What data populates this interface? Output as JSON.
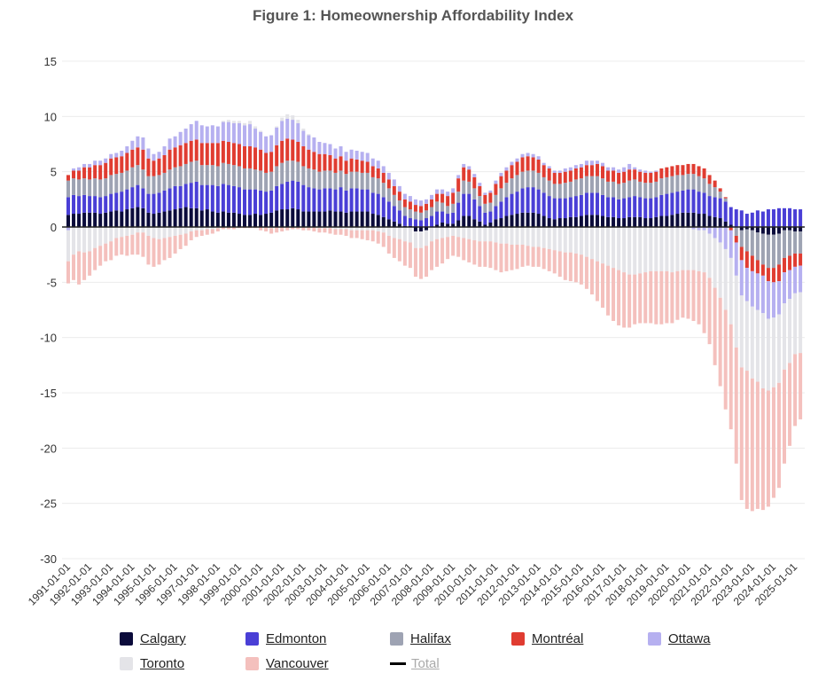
{
  "chart_data": {
    "type": "bar",
    "barmode": "relative",
    "title": "Figure 1: Homeownership Affordability Index",
    "xlabel": "",
    "ylabel": "",
    "ylim": [
      -30,
      15
    ],
    "yticks": [
      15,
      10,
      5,
      0,
      -5,
      -10,
      -15,
      -20,
      -25,
      -30
    ],
    "start": "1991Q1",
    "frequency": "quarterly",
    "xtick_labels": [
      "1991-01-01",
      "1992-01-01",
      "1993-01-01",
      "1994-01-01",
      "1995-01-01",
      "1996-01-01",
      "1997-01-01",
      "1998-01-01",
      "1999-01-01",
      "2000-01-01",
      "2001-01-01",
      "2002-01-01",
      "2003-01-01",
      "2004-01-01",
      "2005-01-01",
      "2006-01-01",
      "2007-01-01",
      "2008-01-01",
      "2009-01-01",
      "2010-01-01",
      "2011-01-01",
      "2012-01-01",
      "2013-01-01",
      "2014-01-01",
      "2015-01-01",
      "2016-01-01",
      "2017-01-01",
      "2018-01-01",
      "2019-01-01",
      "2020-01-01",
      "2021-01-01",
      "2022-01-01",
      "2023-01-01",
      "2024-01-01",
      "2025-01-01"
    ],
    "grid": true,
    "legend_placement": "bottom",
    "series": [
      {
        "name": "Calgary",
        "color": "#0b0b3b",
        "values": [
          1.1,
          1.2,
          1.2,
          1.3,
          1.3,
          1.3,
          1.2,
          1.3,
          1.4,
          1.5,
          1.4,
          1.6,
          1.7,
          1.8,
          1.7,
          1.3,
          1.2,
          1.3,
          1.4,
          1.5,
          1.6,
          1.7,
          1.8,
          1.7,
          1.7,
          1.5,
          1.6,
          1.4,
          1.3,
          1.4,
          1.3,
          1.3,
          1.2,
          1.1,
          1.1,
          1.2,
          1.1,
          1.2,
          1.3,
          1.5,
          1.6,
          1.6,
          1.7,
          1.6,
          1.4,
          1.4,
          1.4,
          1.4,
          1.4,
          1.5,
          1.4,
          1.4,
          1.3,
          1.4,
          1.4,
          1.4,
          1.4,
          1.2,
          1.1,
          0.9,
          0.7,
          0.5,
          0.3,
          0.1,
          0.1,
          -0.4,
          -0.4,
          -0.3,
          0.0,
          0.2,
          0.4,
          0.3,
          0.3,
          0.6,
          1.0,
          1.0,
          0.7,
          0.5,
          0.2,
          0.4,
          0.7,
          0.8,
          1.0,
          1.1,
          1.2,
          1.3,
          1.3,
          1.3,
          1.2,
          1.0,
          0.8,
          0.7,
          0.8,
          0.8,
          0.9,
          0.9,
          1.0,
          1.1,
          1.1,
          1.1,
          1.0,
          0.9,
          0.9,
          0.8,
          0.8,
          0.9,
          0.9,
          0.9,
          0.8,
          0.8,
          0.9,
          1.0,
          1.0,
          1.1,
          1.2,
          1.3,
          1.3,
          1.3,
          1.2,
          1.2,
          1.0,
          0.9,
          0.8,
          0.5,
          0.2,
          0.0,
          -0.3,
          -0.2,
          -0.3,
          -0.5,
          -0.6,
          -0.7,
          -0.7,
          -0.6,
          -0.3,
          -0.3,
          -0.4,
          -0.4
        ]
      },
      {
        "name": "Edmonton",
        "color": "#4a3fd6",
        "values": [
          1.6,
          1.7,
          1.6,
          1.6,
          1.5,
          1.5,
          1.5,
          1.5,
          1.6,
          1.6,
          1.8,
          1.8,
          1.9,
          2.0,
          1.8,
          1.7,
          1.8,
          1.8,
          1.9,
          2.0,
          2.1,
          2.0,
          2.1,
          2.3,
          2.4,
          2.3,
          2.2,
          2.4,
          2.4,
          2.5,
          2.5,
          2.4,
          2.4,
          2.3,
          2.3,
          2.2,
          2.2,
          2.0,
          2.0,
          2.2,
          2.3,
          2.5,
          2.5,
          2.5,
          2.4,
          2.2,
          2.1,
          2.0,
          2.1,
          2.0,
          2.0,
          2.2,
          2.0,
          2.1,
          2.1,
          2.0,
          2.0,
          1.9,
          1.9,
          1.8,
          1.6,
          1.4,
          1.2,
          0.9,
          0.7,
          0.7,
          0.6,
          0.8,
          1.0,
          1.2,
          1.0,
          0.9,
          1.0,
          1.6,
          2.0,
          2.0,
          1.8,
          1.4,
          1.1,
          1.0,
          1.2,
          1.5,
          1.7,
          1.9,
          2.0,
          2.2,
          2.3,
          2.3,
          2.2,
          2.1,
          2.0,
          1.9,
          1.8,
          1.8,
          1.8,
          1.9,
          1.9,
          2.0,
          2.0,
          2.0,
          1.9,
          1.8,
          1.8,
          1.7,
          1.8,
          1.8,
          1.9,
          1.8,
          1.8,
          1.8,
          1.8,
          1.9,
          2.0,
          2.0,
          2.0,
          2.0,
          2.1,
          2.1,
          2.0,
          1.9,
          1.8,
          1.8,
          1.8,
          1.8,
          1.6,
          1.6,
          1.5,
          1.2,
          1.3,
          1.5,
          1.4,
          1.6,
          1.6,
          1.7,
          1.7,
          1.7,
          1.6,
          1.6
        ]
      },
      {
        "name": "Halifax",
        "color": "#9ea3b3",
        "values": [
          1.5,
          1.5,
          1.5,
          1.5,
          1.5,
          1.6,
          1.6,
          1.6,
          1.7,
          1.7,
          1.7,
          1.7,
          1.8,
          1.8,
          1.7,
          1.6,
          1.6,
          1.6,
          1.6,
          1.7,
          1.7,
          1.8,
          1.8,
          1.9,
          1.9,
          1.8,
          1.8,
          1.8,
          1.8,
          1.9,
          1.9,
          1.9,
          1.9,
          1.9,
          1.9,
          1.8,
          1.8,
          1.7,
          1.7,
          1.8,
          1.9,
          1.9,
          1.8,
          1.8,
          1.7,
          1.7,
          1.7,
          1.6,
          1.6,
          1.6,
          1.5,
          1.5,
          1.5,
          1.5,
          1.5,
          1.5,
          1.5,
          1.4,
          1.4,
          1.3,
          1.2,
          1.0,
          0.9,
          0.8,
          0.8,
          0.7,
          0.7,
          0.7,
          0.8,
          0.9,
          0.8,
          0.7,
          0.8,
          1.0,
          1.2,
          1.1,
          1.0,
          0.9,
          0.8,
          0.8,
          1.0,
          1.2,
          1.3,
          1.4,
          1.5,
          1.5,
          1.5,
          1.5,
          1.5,
          1.4,
          1.4,
          1.3,
          1.3,
          1.4,
          1.4,
          1.5,
          1.5,
          1.5,
          1.5,
          1.5,
          1.5,
          1.4,
          1.4,
          1.4,
          1.4,
          1.5,
          1.5,
          1.4,
          1.4,
          1.4,
          1.4,
          1.5,
          1.5,
          1.5,
          1.5,
          1.4,
          1.4,
          1.4,
          1.4,
          1.3,
          1.1,
          0.9,
          0.6,
          0.3,
          0.0,
          -0.8,
          -1.5,
          -2.0,
          -2.3,
          -2.5,
          -2.8,
          -3.0,
          -3.0,
          -2.8,
          -2.5,
          -2.3,
          -2.0,
          -2.0
        ]
      },
      {
        "name": "Montréal",
        "color": "#e03c31",
        "values": [
          0.5,
          0.7,
          0.8,
          1.0,
          1.1,
          1.2,
          1.3,
          1.4,
          1.5,
          1.5,
          1.5,
          1.6,
          1.6,
          1.6,
          1.8,
          1.6,
          1.4,
          1.5,
          1.6,
          1.8,
          1.8,
          1.9,
          1.9,
          1.9,
          1.9,
          2.0,
          2.0,
          2.0,
          2.1,
          2.0,
          2.0,
          2.0,
          2.0,
          2.0,
          2.0,
          2.0,
          1.9,
          1.8,
          1.8,
          1.9,
          2.0,
          2.0,
          1.9,
          1.8,
          1.8,
          1.7,
          1.6,
          1.6,
          1.5,
          1.4,
          1.3,
          1.3,
          1.2,
          1.2,
          1.1,
          1.1,
          1.0,
          1.0,
          0.9,
          0.9,
          0.8,
          0.8,
          0.8,
          0.7,
          0.7,
          0.6,
          0.6,
          0.6,
          0.7,
          0.7,
          0.8,
          0.9,
          1.0,
          1.2,
          1.2,
          1.1,
          1.0,
          0.9,
          0.8,
          0.9,
          1.0,
          1.1,
          1.1,
          1.2,
          1.2,
          1.3,
          1.3,
          1.2,
          1.2,
          1.1,
          1.1,
          1.0,
          1.0,
          1.0,
          1.0,
          1.0,
          1.0,
          1.0,
          1.0,
          1.1,
          1.1,
          1.0,
          1.0,
          1.0,
          1.0,
          1.0,
          0.9,
          0.9,
          0.9,
          0.9,
          0.9,
          0.9,
          0.9,
          0.9,
          0.9,
          0.9,
          0.9,
          0.9,
          0.9,
          0.9,
          0.8,
          0.6,
          0.3,
          0.1,
          -0.3,
          -0.6,
          -1.2,
          -1.5,
          -1.4,
          -1.2,
          -1.0,
          -1.2,
          -1.3,
          -1.5,
          -1.3,
          -1.3,
          -1.2,
          -1.1
        ]
      },
      {
        "name": "Ottawa",
        "color": "#b6b0f0",
        "values": [
          -0.3,
          0.2,
          0.3,
          0.3,
          0.3,
          0.4,
          0.4,
          0.4,
          0.4,
          0.4,
          0.5,
          0.6,
          0.8,
          1.0,
          1.1,
          0.9,
          0.6,
          0.6,
          0.8,
          1.0,
          1.0,
          1.2,
          1.3,
          1.5,
          1.7,
          1.6,
          1.5,
          1.6,
          1.5,
          1.7,
          1.8,
          1.8,
          1.9,
          1.9,
          2.0,
          1.7,
          1.6,
          1.5,
          1.5,
          1.6,
          1.8,
          1.8,
          1.8,
          1.7,
          1.4,
          1.3,
          1.3,
          1.1,
          1.0,
          1.0,
          0.9,
          0.9,
          0.8,
          0.8,
          0.8,
          0.8,
          0.8,
          0.7,
          0.7,
          0.6,
          0.6,
          0.6,
          0.5,
          0.5,
          0.5,
          0.5,
          0.5,
          0.4,
          0.4,
          0.4,
          0.4,
          0.4,
          0.4,
          0.3,
          0.3,
          0.3,
          0.3,
          0.3,
          0.2,
          0.2,
          0.3,
          0.3,
          0.3,
          0.3,
          0.3,
          0.3,
          0.3,
          0.3,
          0.3,
          0.2,
          0.2,
          0.2,
          0.2,
          0.3,
          0.3,
          0.3,
          0.3,
          0.4,
          0.4,
          0.3,
          0.3,
          0.3,
          0.3,
          0.3,
          0.4,
          0.5,
          0.2,
          0.2,
          0.2,
          0.1,
          0.1,
          0.0,
          0.0,
          -0.1,
          -0.1,
          -0.1,
          -0.1,
          -0.2,
          -0.3,
          -0.3,
          -0.6,
          -1.0,
          -1.4,
          -2.0,
          -2.5,
          -3.0,
          -3.2,
          -3.0,
          -3.2,
          -3.3,
          -3.4,
          -3.4,
          -3.2,
          -3.0,
          -2.8,
          -2.6,
          -2.4,
          -2.4
        ]
      },
      {
        "name": "Toronto",
        "color": "#e4e4e8",
        "values": [
          -2.8,
          -2.5,
          -2.2,
          -2.3,
          -2.2,
          -1.9,
          -1.7,
          -1.5,
          -1.3,
          -1.0,
          -0.9,
          -0.8,
          -0.7,
          -0.5,
          -0.5,
          -0.8,
          -1.0,
          -1.1,
          -1.0,
          -0.9,
          -0.8,
          -0.7,
          -0.6,
          -0.4,
          -0.3,
          -0.3,
          -0.2,
          -0.2,
          -0.1,
          0.1,
          0.2,
          0.2,
          0.2,
          0.2,
          0.3,
          0.2,
          0.1,
          0.0,
          -0.1,
          0.1,
          0.3,
          0.4,
          0.4,
          0.3,
          0.2,
          0.1,
          0.0,
          -0.1,
          -0.1,
          -0.1,
          -0.2,
          -0.2,
          -0.2,
          -0.3,
          -0.3,
          -0.3,
          -0.3,
          -0.3,
          -0.4,
          -0.5,
          -0.8,
          -1.0,
          -1.1,
          -1.3,
          -1.4,
          -1.5,
          -1.5,
          -1.4,
          -1.3,
          -1.1,
          -1.0,
          -0.9,
          -0.8,
          -0.9,
          -1.0,
          -1.1,
          -1.2,
          -1.3,
          -1.3,
          -1.3,
          -1.4,
          -1.5,
          -1.5,
          -1.6,
          -1.6,
          -1.6,
          -1.7,
          -1.8,
          -1.8,
          -1.9,
          -2.0,
          -2.1,
          -2.2,
          -2.3,
          -2.3,
          -2.4,
          -2.5,
          -2.7,
          -2.9,
          -3.1,
          -3.3,
          -3.5,
          -3.7,
          -3.9,
          -4.1,
          -4.3,
          -4.3,
          -4.2,
          -4.1,
          -4.0,
          -4.0,
          -4.0,
          -4.0,
          -4.0,
          -3.9,
          -3.8,
          -3.8,
          -3.7,
          -3.7,
          -3.8,
          -4.0,
          -4.5,
          -5.0,
          -5.5,
          -6.0,
          -6.5,
          -6.5,
          -6.3,
          -6.5,
          -6.5,
          -6.8,
          -6.5,
          -6.3,
          -6.2,
          -6.0,
          -5.8,
          -5.5,
          -5.5
        ]
      },
      {
        "name": "Vancouver",
        "color": "#f4c0bd",
        "values": [
          -2.0,
          -2.3,
          -3.0,
          -2.5,
          -2.2,
          -2.0,
          -1.8,
          -1.6,
          -1.7,
          -1.6,
          -1.6,
          -1.8,
          -1.8,
          -2.0,
          -2.2,
          -2.6,
          -2.6,
          -2.3,
          -2.0,
          -1.9,
          -1.6,
          -1.3,
          -1.1,
          -0.8,
          -0.6,
          -0.5,
          -0.5,
          -0.4,
          -0.3,
          -0.2,
          -0.2,
          -0.2,
          -0.1,
          -0.1,
          -0.1,
          -0.1,
          -0.3,
          -0.4,
          -0.5,
          -0.5,
          -0.4,
          -0.3,
          -0.2,
          -0.2,
          -0.3,
          -0.3,
          -0.4,
          -0.4,
          -0.4,
          -0.5,
          -0.5,
          -0.5,
          -0.6,
          -0.7,
          -0.7,
          -0.8,
          -0.9,
          -1.0,
          -1.1,
          -1.3,
          -1.6,
          -1.8,
          -2.0,
          -2.2,
          -2.3,
          -2.6,
          -2.8,
          -2.8,
          -2.6,
          -2.5,
          -2.3,
          -2.0,
          -1.8,
          -1.8,
          -2.0,
          -2.1,
          -2.2,
          -2.3,
          -2.3,
          -2.4,
          -2.5,
          -2.6,
          -2.5,
          -2.3,
          -2.2,
          -2.0,
          -1.8,
          -1.8,
          -1.8,
          -1.9,
          -2.0,
          -2.1,
          -2.3,
          -2.5,
          -2.6,
          -2.6,
          -2.7,
          -2.9,
          -3.2,
          -3.6,
          -4.0,
          -4.5,
          -4.8,
          -5.0,
          -5.0,
          -4.8,
          -4.5,
          -4.5,
          -4.6,
          -4.7,
          -4.8,
          -4.8,
          -4.7,
          -4.6,
          -4.4,
          -4.3,
          -4.4,
          -4.6,
          -4.8,
          -5.5,
          -6.0,
          -7.0,
          -8.0,
          -9.0,
          -9.5,
          -10.5,
          -12.0,
          -12.5,
          -12.0,
          -11.5,
          -11.0,
          -10.5,
          -10.0,
          -9.5,
          -8.5,
          -7.5,
          -6.5,
          -6.0
        ]
      }
    ],
    "legend": [
      {
        "name": "Calgary",
        "color": "#0b0b3b",
        "visible": true
      },
      {
        "name": "Edmonton",
        "color": "#4a3fd6",
        "visible": true
      },
      {
        "name": "Halifax",
        "color": "#9ea3b3",
        "visible": true
      },
      {
        "name": "Montréal",
        "color": "#e03c31",
        "visible": true
      },
      {
        "name": "Ottawa",
        "color": "#b6b0f0",
        "visible": true
      },
      {
        "name": "Toronto",
        "color": "#e4e4e8",
        "visible": true
      },
      {
        "name": "Vancouver",
        "color": "#f4c0bd",
        "visible": true
      },
      {
        "name": "Total",
        "color": "#000000",
        "visible": false
      }
    ]
  }
}
